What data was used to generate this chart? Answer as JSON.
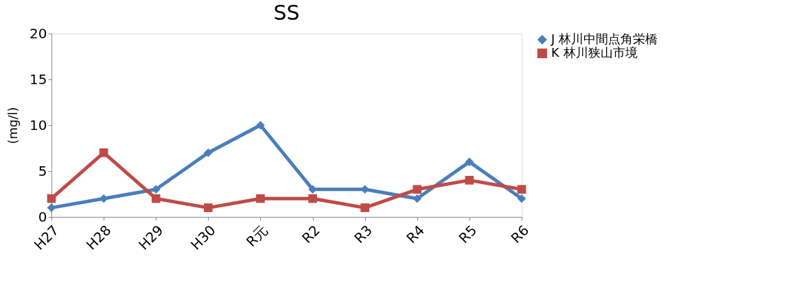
{
  "chart_data": {
    "type": "line",
    "title": "SS",
    "ylabel": "(mg/l)",
    "categories": [
      "H27",
      "H28",
      "H29",
      "H30",
      "R元",
      "R2",
      "R3",
      "R4",
      "R5",
      "R6"
    ],
    "series": [
      {
        "name": "J 林川中間点角栄橋",
        "color": "#4a7ebb",
        "marker": "diamond",
        "values": [
          1,
          2,
          3,
          7,
          10,
          3,
          3,
          2,
          6,
          2
        ]
      },
      {
        "name": "K 林川狭山市境",
        "color": "#be4b48",
        "marker": "square",
        "values": [
          2,
          7,
          2,
          1,
          2,
          2,
          1,
          3,
          4,
          3
        ]
      }
    ],
    "ylim": [
      0,
      20
    ],
    "yticks": [
      0,
      5,
      10,
      15,
      20
    ],
    "grid": false,
    "legend": "right",
    "line_style": "solid"
  }
}
